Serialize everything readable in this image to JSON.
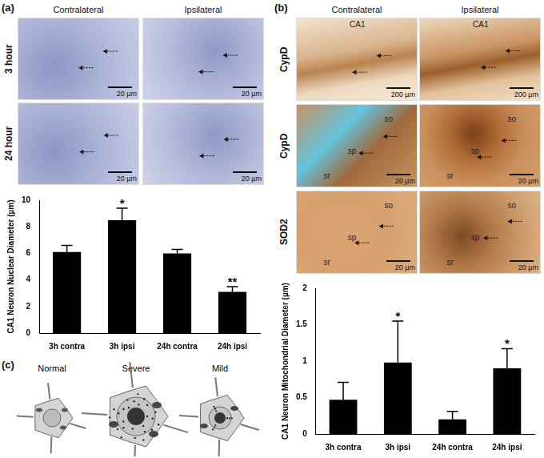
{
  "chart_data": [
    {
      "type": "bar",
      "y_label": "CA1 Neuron Nuclear Diameter (µm)",
      "categories": [
        "3h contra",
        "3h ipsi",
        "24h contra",
        "24h ipsi"
      ],
      "values": [
        6.1,
        8.5,
        6.0,
        3.1
      ],
      "errors": [
        0.5,
        0.9,
        0.3,
        0.4
      ],
      "significance": [
        null,
        "*",
        null,
        "**"
      ],
      "color": "#000000",
      "ylim": [
        0,
        10
      ],
      "yticks": [
        0,
        2,
        4,
        6,
        8,
        10
      ],
      "grid": false
    },
    {
      "type": "bar",
      "y_label": "CA1 Neuron Mitochondrial Diameter (µm)",
      "categories": [
        "3h contra",
        "3h ipsi",
        "24h contra",
        "24h ipsi"
      ],
      "values": [
        0.47,
        0.98,
        0.2,
        0.9
      ],
      "errors": [
        0.24,
        0.57,
        0.11,
        0.27
      ],
      "significance": [
        null,
        "*",
        null,
        "*"
      ],
      "color": "#000000",
      "ylim": [
        0,
        2
      ],
      "yticks": [
        0,
        0.5,
        1,
        1.5,
        2
      ],
      "grid": false
    }
  ],
  "figure": {
    "panel_a": {
      "label": "(a)",
      "columns": [
        "Contralateral",
        "Ipsilateral"
      ],
      "rows": [
        {
          "label": "3 hour",
          "cells": [
            {
              "scale_bar": "20 µm"
            },
            {
              "scale_bar": "20 µm"
            }
          ]
        },
        {
          "label": "24 hour",
          "cells": [
            {
              "scale_bar": "20 µm"
            },
            {
              "scale_bar": "20 µm"
            }
          ]
        }
      ]
    },
    "panel_b": {
      "label": "(b)",
      "columns": [
        "Contralateral",
        "Ipsilateral"
      ],
      "rows": [
        {
          "label": "CypD",
          "cells": [
            {
              "region": "CA1",
              "scale_bar": "200 µm"
            },
            {
              "region": "CA1",
              "scale_bar": "200 µm"
            }
          ]
        },
        {
          "label": "CypD",
          "cells": [
            {
              "layers": [
                "so",
                "sp",
                "sr"
              ],
              "scale_bar": "20 µm"
            },
            {
              "layers": [
                "so",
                "sp",
                "sr"
              ],
              "scale_bar": "20 µm"
            }
          ]
        },
        {
          "label": "SOD2",
          "cells": [
            {
              "layers": [
                "so",
                "sp",
                "sr"
              ],
              "scale_bar": "20 µm"
            },
            {
              "layers": [
                "so",
                "sp",
                "sr"
              ],
              "scale_bar": "20 µm"
            }
          ]
        }
      ]
    },
    "panel_c": {
      "label": "(c)",
      "cells": [
        "Normal",
        "Severe",
        "Mild"
      ]
    }
  }
}
